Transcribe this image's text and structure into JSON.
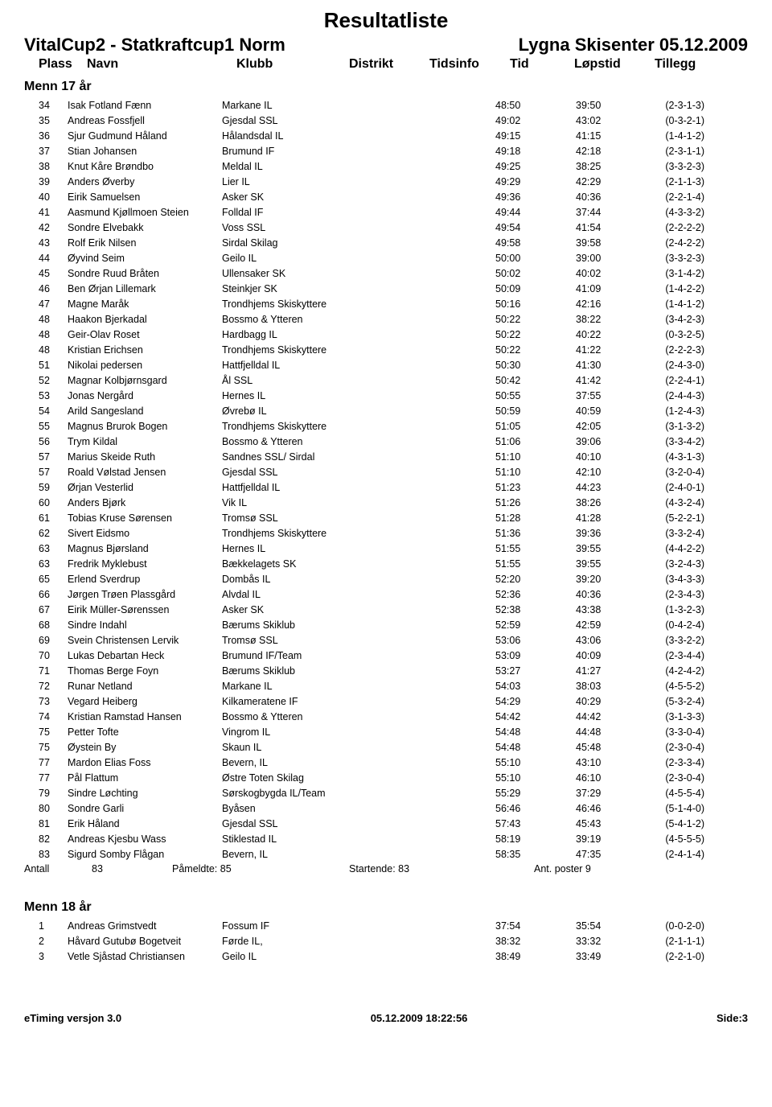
{
  "title": "Resultatliste",
  "event": "VitalCup2 - Statkraftcup1 Norm",
  "venue": "Lygna Skisenter 05.12.2009",
  "columns": {
    "plass": "Plass",
    "navn": "Navn",
    "klubb": "Klubb",
    "distrikt": "Distrikt",
    "tidsinfo": "Tidsinfo",
    "tid": "Tid",
    "lopstid": "Løpstid",
    "tillegg": "Tillegg"
  },
  "categories": [
    {
      "name": "Menn 17 år",
      "rows": [
        {
          "plass": "34",
          "navn": "Isak Fotland Fænn",
          "klubb": "Markane IL",
          "tid": "48:50",
          "lopstid": "39:50",
          "tillegg": "(2-3-1-3)"
        },
        {
          "plass": "35",
          "navn": "Andreas Fossfjell",
          "klubb": "Gjesdal SSL",
          "tid": "49:02",
          "lopstid": "43:02",
          "tillegg": "(0-3-2-1)"
        },
        {
          "plass": "36",
          "navn": "Sjur Gudmund Håland",
          "klubb": "Hålandsdal IL",
          "tid": "49:15",
          "lopstid": "41:15",
          "tillegg": "(1-4-1-2)"
        },
        {
          "plass": "37",
          "navn": "Stian Johansen",
          "klubb": "Brumund IF",
          "tid": "49:18",
          "lopstid": "42:18",
          "tillegg": "(2-3-1-1)"
        },
        {
          "plass": "38",
          "navn": "Knut Kåre Brøndbo",
          "klubb": "Meldal IL",
          "tid": "49:25",
          "lopstid": "38:25",
          "tillegg": "(3-3-2-3)"
        },
        {
          "plass": "39",
          "navn": "Anders Øverby",
          "klubb": "Lier IL",
          "tid": "49:29",
          "lopstid": "42:29",
          "tillegg": "(2-1-1-3)"
        },
        {
          "plass": "40",
          "navn": "Eirik Samuelsen",
          "klubb": "Asker SK",
          "tid": "49:36",
          "lopstid": "40:36",
          "tillegg": "(2-2-1-4)"
        },
        {
          "plass": "41",
          "navn": "Aasmund Kjøllmoen Steien",
          "klubb": "Folldal IF",
          "tid": "49:44",
          "lopstid": "37:44",
          "tillegg": "(4-3-3-2)"
        },
        {
          "plass": "42",
          "navn": "Sondre Elvebakk",
          "klubb": "Voss SSL",
          "tid": "49:54",
          "lopstid": "41:54",
          "tillegg": "(2-2-2-2)"
        },
        {
          "plass": "43",
          "navn": "Rolf Erik Nilsen",
          "klubb": "Sirdal Skilag",
          "tid": "49:58",
          "lopstid": "39:58",
          "tillegg": "(2-4-2-2)"
        },
        {
          "plass": "44",
          "navn": "Øyvind Seim",
          "klubb": "Geilo IL",
          "tid": "50:00",
          "lopstid": "39:00",
          "tillegg": "(3-3-2-3)"
        },
        {
          "plass": "45",
          "navn": "Sondre Ruud Bråten",
          "klubb": "Ullensaker SK",
          "tid": "50:02",
          "lopstid": "40:02",
          "tillegg": "(3-1-4-2)"
        },
        {
          "plass": "46",
          "navn": "Ben Ørjan Lillemark",
          "klubb": "Steinkjer SK",
          "tid": "50:09",
          "lopstid": "41:09",
          "tillegg": "(1-4-2-2)"
        },
        {
          "plass": "47",
          "navn": "Magne Maråk",
          "klubb": "Trondhjems Skiskyttere",
          "tid": "50:16",
          "lopstid": "42:16",
          "tillegg": "(1-4-1-2)"
        },
        {
          "plass": "48",
          "navn": "Haakon Bjerkadal",
          "klubb": "Bossmo &amp; Ytteren",
          "tid": "50:22",
          "lopstid": "38:22",
          "tillegg": "(3-4-2-3)"
        },
        {
          "plass": "48",
          "navn": "Geir-Olav Roset",
          "klubb": "Hardbagg IL",
          "tid": "50:22",
          "lopstid": "40:22",
          "tillegg": "(0-3-2-5)"
        },
        {
          "plass": "48",
          "navn": "Kristian Erichsen",
          "klubb": "Trondhjems Skiskyttere",
          "tid": "50:22",
          "lopstid": "41:22",
          "tillegg": "(2-2-2-3)"
        },
        {
          "plass": "51",
          "navn": "Nikolai pedersen",
          "klubb": "Hattfjelldal IL",
          "tid": "50:30",
          "lopstid": "41:30",
          "tillegg": "(2-4-3-0)"
        },
        {
          "plass": "52",
          "navn": "Magnar Kolbjørnsgard",
          "klubb": "Ål SSL",
          "tid": "50:42",
          "lopstid": "41:42",
          "tillegg": "(2-2-4-1)"
        },
        {
          "plass": "53",
          "navn": "Jonas Nergård",
          "klubb": "Hernes IL",
          "tid": "50:55",
          "lopstid": "37:55",
          "tillegg": "(2-4-4-3)"
        },
        {
          "plass": "54",
          "navn": "Arild Sangesland",
          "klubb": "Øvrebø IL",
          "tid": "50:59",
          "lopstid": "40:59",
          "tillegg": "(1-2-4-3)"
        },
        {
          "plass": "55",
          "navn": "Magnus Brurok Bogen",
          "klubb": "Trondhjems Skiskyttere",
          "tid": "51:05",
          "lopstid": "42:05",
          "tillegg": "(3-1-3-2)"
        },
        {
          "plass": "56",
          "navn": "Trym Kildal",
          "klubb": "Bossmo &amp; Ytteren",
          "tid": "51:06",
          "lopstid": "39:06",
          "tillegg": "(3-3-4-2)"
        },
        {
          "plass": "57",
          "navn": "Marius Skeide Ruth",
          "klubb": "Sandnes SSL/ Sirdal",
          "tid": "51:10",
          "lopstid": "40:10",
          "tillegg": "(4-3-1-3)"
        },
        {
          "plass": "57",
          "navn": "Roald Vølstad Jensen",
          "klubb": "Gjesdal SSL",
          "tid": "51:10",
          "lopstid": "42:10",
          "tillegg": "(3-2-0-4)"
        },
        {
          "plass": "59",
          "navn": "Ørjan Vesterlid",
          "klubb": "Hattfjelldal IL",
          "tid": "51:23",
          "lopstid": "44:23",
          "tillegg": "(2-4-0-1)"
        },
        {
          "plass": "60",
          "navn": "Anders Bjørk",
          "klubb": "Vik IL",
          "tid": "51:26",
          "lopstid": "38:26",
          "tillegg": "(4-3-2-4)"
        },
        {
          "plass": "61",
          "navn": "Tobias Kruse Sørensen",
          "klubb": "Tromsø SSL",
          "tid": "51:28",
          "lopstid": "41:28",
          "tillegg": "(5-2-2-1)"
        },
        {
          "plass": "62",
          "navn": "Sivert Eidsmo",
          "klubb": "Trondhjems Skiskyttere",
          "tid": "51:36",
          "lopstid": "39:36",
          "tillegg": "(3-3-2-4)"
        },
        {
          "plass": "63",
          "navn": "Magnus Bjørsland",
          "klubb": "Hernes IL",
          "tid": "51:55",
          "lopstid": "39:55",
          "tillegg": "(4-4-2-2)"
        },
        {
          "plass": "63",
          "navn": "Fredrik Myklebust",
          "klubb": "Bækkelagets SK",
          "tid": "51:55",
          "lopstid": "39:55",
          "tillegg": "(3-2-4-3)"
        },
        {
          "plass": "65",
          "navn": "Erlend Sverdrup",
          "klubb": "Dombås IL",
          "tid": "52:20",
          "lopstid": "39:20",
          "tillegg": "(3-4-3-3)"
        },
        {
          "plass": "66",
          "navn": "Jørgen Trøen Plassgård",
          "klubb": "Alvdal IL",
          "tid": "52:36",
          "lopstid": "40:36",
          "tillegg": "(2-3-4-3)"
        },
        {
          "plass": "67",
          "navn": "Eirik Müller-Sørenssen",
          "klubb": "Asker SK",
          "tid": "52:38",
          "lopstid": "43:38",
          "tillegg": "(1-3-2-3)"
        },
        {
          "plass": "68",
          "navn": "Sindre Indahl",
          "klubb": "Bærums Skiklub",
          "tid": "52:59",
          "lopstid": "42:59",
          "tillegg": "(0-4-2-4)"
        },
        {
          "plass": "69",
          "navn": "Svein Christensen Lervik",
          "klubb": "Tromsø SSL",
          "tid": "53:06",
          "lopstid": "43:06",
          "tillegg": "(3-3-2-2)"
        },
        {
          "plass": "70",
          "navn": "Lukas Debartan Heck",
          "klubb": "Brumund IF/Team",
          "tid": "53:09",
          "lopstid": "40:09",
          "tillegg": "(2-3-4-4)"
        },
        {
          "plass": "71",
          "navn": "Thomas Berge Foyn",
          "klubb": "Bærums Skiklub",
          "tid": "53:27",
          "lopstid": "41:27",
          "tillegg": "(4-2-4-2)"
        },
        {
          "plass": "72",
          "navn": "Runar Netland",
          "klubb": "Markane IL",
          "tid": "54:03",
          "lopstid": "38:03",
          "tillegg": "(4-5-5-2)"
        },
        {
          "plass": "73",
          "navn": "Vegard Heiberg",
          "klubb": "Kilkameratene IF",
          "tid": "54:29",
          "lopstid": "40:29",
          "tillegg": "(5-3-2-4)"
        },
        {
          "plass": "74",
          "navn": "Kristian Ramstad Hansen",
          "klubb": "Bossmo &amp; Ytteren",
          "tid": "54:42",
          "lopstid": "44:42",
          "tillegg": "(3-1-3-3)"
        },
        {
          "plass": "75",
          "navn": "Petter Tofte",
          "klubb": "Vingrom IL",
          "tid": "54:48",
          "lopstid": "44:48",
          "tillegg": "(3-3-0-4)"
        },
        {
          "plass": "75",
          "navn": "Øystein By",
          "klubb": "Skaun IL",
          "tid": "54:48",
          "lopstid": "45:48",
          "tillegg": "(2-3-0-4)"
        },
        {
          "plass": "77",
          "navn": "Mardon Elias Foss",
          "klubb": "Bevern, IL",
          "tid": "55:10",
          "lopstid": "43:10",
          "tillegg": "(2-3-3-4)"
        },
        {
          "plass": "77",
          "navn": "Pål Flattum",
          "klubb": "Østre Toten Skilag",
          "tid": "55:10",
          "lopstid": "46:10",
          "tillegg": "(2-3-0-4)"
        },
        {
          "plass": "79",
          "navn": "Sindre Løchting",
          "klubb": "Sørskogbygda IL/Team",
          "tid": "55:29",
          "lopstid": "37:29",
          "tillegg": "(4-5-5-4)"
        },
        {
          "plass": "80",
          "navn": "Sondre Garli",
          "klubb": "Byåsen",
          "tid": "56:46",
          "lopstid": "46:46",
          "tillegg": "(5-1-4-0)"
        },
        {
          "plass": "81",
          "navn": "Erik Håland",
          "klubb": "Gjesdal SSL",
          "tid": "57:43",
          "lopstid": "45:43",
          "tillegg": "(5-4-1-2)"
        },
        {
          "plass": "82",
          "navn": "Andreas Kjesbu Wass",
          "klubb": "Stiklestad IL",
          "tid": "58:19",
          "lopstid": "39:19",
          "tillegg": "(4-5-5-5)"
        },
        {
          "plass": "83",
          "navn": "Sigurd Somby Flågan",
          "klubb": "Bevern, IL",
          "tid": "58:35",
          "lopstid": "47:35",
          "tillegg": "(2-4-1-4)"
        }
      ],
      "summary": {
        "antall_label": "Antall",
        "antall": "83",
        "pameldte_label": "Påmeldte:",
        "pameldte": "85",
        "startende_label": "Startende:",
        "startende": "83",
        "poster_label": "Ant. poster",
        "poster": "9"
      }
    },
    {
      "name": "Menn 18 år",
      "rows": [
        {
          "plass": "1",
          "navn": "Andreas Grimstvedt",
          "klubb": "Fossum IF",
          "tid": "37:54",
          "lopstid": "35:54",
          "tillegg": "(0-0-2-0)"
        },
        {
          "plass": "2",
          "navn": "Håvard Gutubø Bogetveit",
          "klubb": "Førde IL,",
          "tid": "38:32",
          "lopstid": "33:32",
          "tillegg": "(2-1-1-1)"
        },
        {
          "plass": "3",
          "navn": "Vetle Sjåstad Christiansen",
          "klubb": "Geilo IL",
          "tid": "38:49",
          "lopstid": "33:49",
          "tillegg": "(2-2-1-0)"
        }
      ]
    }
  ],
  "footer": {
    "left": "eTiming versjon 3.0",
    "center": "05.12.2009 18:22:56",
    "right": "Side:3"
  }
}
